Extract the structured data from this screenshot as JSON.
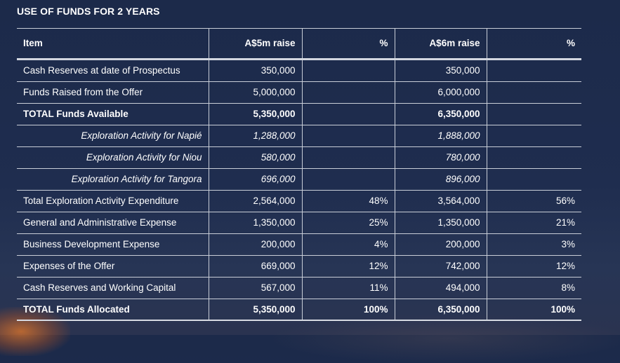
{
  "page": {
    "title": "USE OF FUNDS FOR 2 YEARS"
  },
  "table": {
    "headers": [
      "Item",
      "A$5m raise",
      "%",
      "A$6m raise",
      "%"
    ],
    "rows": [
      {
        "item": "Cash Reserves at date of Prospectus",
        "a5": "350,000",
        "p5": "",
        "a6": "350,000",
        "p6": "",
        "style": "normal"
      },
      {
        "item": "Funds Raised from the Offer",
        "a5": "5,000,000",
        "p5": "",
        "a6": "6,000,000",
        "p6": "",
        "style": "normal"
      },
      {
        "item": "TOTAL Funds Available",
        "a5": "5,350,000",
        "p5": "",
        "a6": "6,350,000",
        "p6": "",
        "style": "bold"
      },
      {
        "item": "Exploration Activity for Napié",
        "a5": "1,288,000",
        "p5": "",
        "a6": "1,888,000",
        "p6": "",
        "style": "sub"
      },
      {
        "item": "Exploration Activity for Niou",
        "a5": "580,000",
        "p5": "",
        "a6": "780,000",
        "p6": "",
        "style": "sub"
      },
      {
        "item": "Exploration Activity for Tangora",
        "a5": "696,000",
        "p5": "",
        "a6": "896,000",
        "p6": "",
        "style": "sub"
      },
      {
        "item": "Total Exploration Activity Expenditure",
        "a5": "2,564,000",
        "p5": "48%",
        "a6": "3,564,000",
        "p6": "56%",
        "style": "normal"
      },
      {
        "item": "General and Administrative Expense",
        "a5": "1,350,000",
        "p5": "25%",
        "a6": "1,350,000",
        "p6": "21%",
        "style": "normal"
      },
      {
        "item": "Business Development Expense",
        "a5": "200,000",
        "p5": "4%",
        "a6": "200,000",
        "p6": "3%",
        "style": "normal"
      },
      {
        "item": "Expenses of the Offer",
        "a5": "669,000",
        "p5": "12%",
        "a6": "742,000",
        "p6": "12%",
        "style": "normal"
      },
      {
        "item": "Cash Reserves and Working Capital",
        "a5": "567,000",
        "p5": "11%",
        "a6": "494,000",
        "p6": "8%",
        "style": "normal"
      },
      {
        "item": "TOTAL Funds Allocated",
        "a5": "5,350,000",
        "p5": "100%",
        "a6": "6,350,000",
        "p6": "100%",
        "style": "bold"
      }
    ]
  }
}
